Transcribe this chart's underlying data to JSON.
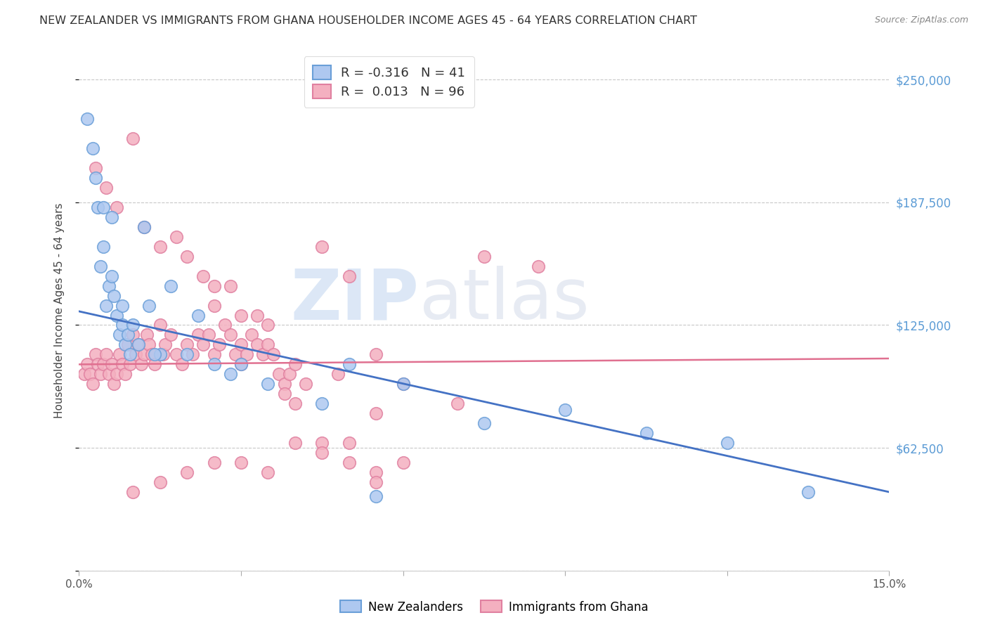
{
  "title": "NEW ZEALANDER VS IMMIGRANTS FROM GHANA HOUSEHOLDER INCOME AGES 45 - 64 YEARS CORRELATION CHART",
  "source": "Source: ZipAtlas.com",
  "ylabel": "Householder Income Ages 45 - 64 years",
  "yticks": [
    0,
    62500,
    125000,
    187500,
    250000
  ],
  "ytick_labels": [
    "",
    "$62,500",
    "$125,000",
    "$187,500",
    "$250,000"
  ],
  "xlim": [
    0.0,
    15.0
  ],
  "ylim": [
    0,
    265000
  ],
  "legend_entries": [
    {
      "R": "-0.316",
      "N": "41",
      "label": "New Zealanders"
    },
    {
      "R": "0.013",
      "N": "96",
      "label": "Immigrants from Ghana"
    }
  ],
  "nz_scatter_x": [
    0.15,
    0.25,
    0.3,
    0.4,
    0.45,
    0.5,
    0.55,
    0.6,
    0.65,
    0.7,
    0.75,
    0.8,
    0.85,
    0.9,
    0.95,
    1.0,
    1.1,
    1.2,
    1.3,
    1.5,
    1.7,
    2.0,
    2.2,
    2.5,
    2.8,
    3.0,
    3.5,
    4.5,
    5.0,
    5.5,
    6.0,
    7.5,
    9.0,
    10.5,
    12.0,
    13.5,
    0.35,
    0.45,
    0.6,
    0.8,
    1.4
  ],
  "nz_scatter_y": [
    230000,
    215000,
    200000,
    155000,
    165000,
    135000,
    145000,
    150000,
    140000,
    130000,
    120000,
    125000,
    115000,
    120000,
    110000,
    125000,
    115000,
    175000,
    135000,
    110000,
    145000,
    110000,
    130000,
    105000,
    100000,
    105000,
    95000,
    85000,
    105000,
    38000,
    95000,
    75000,
    82000,
    70000,
    65000,
    40000,
    185000,
    185000,
    180000,
    135000,
    110000
  ],
  "ghana_scatter_x": [
    0.1,
    0.15,
    0.2,
    0.25,
    0.3,
    0.35,
    0.4,
    0.45,
    0.5,
    0.55,
    0.6,
    0.65,
    0.7,
    0.75,
    0.8,
    0.85,
    0.9,
    0.95,
    1.0,
    1.05,
    1.1,
    1.15,
    1.2,
    1.25,
    1.3,
    1.35,
    1.4,
    1.5,
    1.55,
    1.6,
    1.7,
    1.8,
    1.9,
    2.0,
    2.1,
    2.2,
    2.3,
    2.4,
    2.5,
    2.6,
    2.7,
    2.8,
    2.9,
    3.0,
    3.1,
    3.2,
    3.3,
    3.4,
    3.5,
    3.6,
    3.7,
    3.8,
    3.9,
    4.0,
    4.2,
    4.5,
    4.8,
    5.0,
    5.5,
    5.5,
    6.0,
    7.0,
    7.5,
    8.5,
    3.0,
    2.5,
    0.3,
    0.5,
    0.7,
    1.0,
    1.2,
    1.5,
    1.8,
    2.0,
    2.3,
    2.5,
    2.8,
    3.0,
    3.3,
    3.5,
    3.8,
    4.0,
    4.5,
    5.0,
    5.5,
    6.0,
    1.0,
    1.5,
    2.0,
    2.5,
    3.0,
    3.5,
    4.0,
    4.5,
    5.0,
    5.5
  ],
  "ghana_scatter_y": [
    100000,
    105000,
    100000,
    95000,
    110000,
    105000,
    100000,
    105000,
    110000,
    100000,
    105000,
    95000,
    100000,
    110000,
    105000,
    100000,
    115000,
    105000,
    120000,
    110000,
    115000,
    105000,
    110000,
    120000,
    115000,
    110000,
    105000,
    125000,
    110000,
    115000,
    120000,
    110000,
    105000,
    115000,
    110000,
    120000,
    115000,
    120000,
    110000,
    115000,
    125000,
    120000,
    110000,
    115000,
    110000,
    120000,
    115000,
    110000,
    115000,
    110000,
    100000,
    95000,
    100000,
    105000,
    95000,
    165000,
    100000,
    150000,
    110000,
    80000,
    95000,
    85000,
    160000,
    155000,
    105000,
    135000,
    205000,
    195000,
    185000,
    220000,
    175000,
    165000,
    170000,
    160000,
    150000,
    145000,
    145000,
    130000,
    130000,
    125000,
    90000,
    85000,
    65000,
    65000,
    50000,
    55000,
    40000,
    45000,
    50000,
    55000,
    55000,
    50000,
    65000,
    60000,
    55000,
    45000
  ],
  "nz_line_color": "#4472c4",
  "ghana_line_color": "#e07090",
  "nz_marker_facecolor": "#aec8f0",
  "nz_marker_edgecolor": "#6a9fd8",
  "ghana_marker_facecolor": "#f4b0c0",
  "ghana_marker_edgecolor": "#e080a0",
  "watermark_zip": "ZIP",
  "watermark_atlas": "atlas",
  "background_color": "#ffffff",
  "grid_color": "#c8c8c8",
  "title_color": "#333333",
  "source_color": "#888888",
  "ylabel_color": "#444444",
  "ytick_color": "#5b9bd5",
  "xtick_color": "#555555"
}
